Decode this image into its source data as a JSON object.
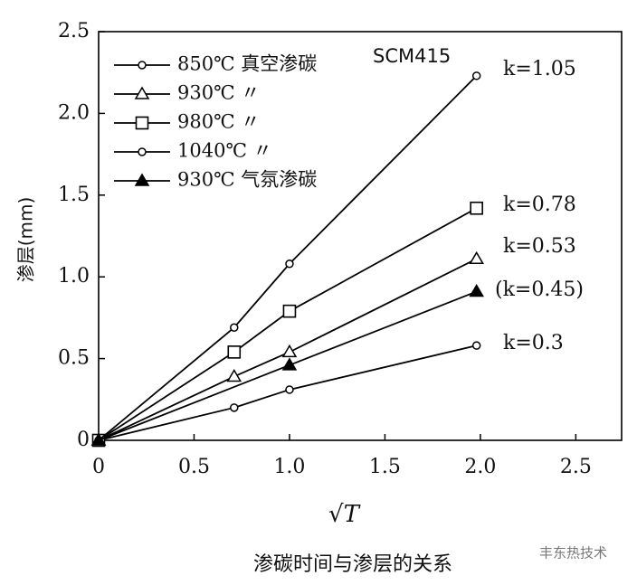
{
  "chart_data": {
    "type": "line",
    "x_label": "√T",
    "y_label": "渗层(mm)",
    "caption": "渗碳时间与渗层的关系",
    "watermark": "丰东热技术",
    "annotations": [
      "SCM415",
      "k=1.05",
      "k=0.78",
      "k=0.53",
      "(k=0.45)",
      "k=0.3"
    ],
    "series": [
      {
        "name": "850℃ 真空渗碳",
        "color": "#000000",
        "marker": "circle-small",
        "x": [
          0,
          0.71,
          1.0,
          1.98
        ],
        "values": [
          0,
          0.2,
          0.31,
          0.58
        ]
      },
      {
        "name": "930℃ 〃",
        "color": "#000000",
        "marker": "triangle",
        "x": [
          0,
          0.71,
          1.0,
          1.98
        ],
        "values": [
          0,
          0.39,
          0.54,
          1.11
        ]
      },
      {
        "name": "980℃ 〃",
        "color": "#000000",
        "marker": "square",
        "x": [
          0,
          0.71,
          1.0,
          1.98
        ],
        "values": [
          0,
          0.54,
          0.79,
          1.42
        ]
      },
      {
        "name": "1040℃ 〃",
        "color": "#000000",
        "marker": "circle-small",
        "x": [
          0,
          0.71,
          1.0,
          1.98
        ],
        "values": [
          0,
          0.69,
          1.08,
          2.23
        ]
      },
      {
        "name": "930℃ 气氛渗碳",
        "color": "#000000",
        "marker": "triangle-filled",
        "x": [
          0,
          1.0,
          1.98
        ],
        "values": [
          0,
          0.46,
          0.91
        ]
      }
    ],
    "xlim": [
      0,
      2.74
    ],
    "ylim": [
      0,
      2.5
    ],
    "xticks": [
      0,
      0.5,
      {
        "value": 1,
        "label": "1.0"
      },
      1.5,
      {
        "value": 2,
        "label": "2.0"
      },
      2.5
    ],
    "yticks": [
      0,
      0.5,
      {
        "value": 1,
        "label": "1.0"
      },
      1.5,
      {
        "value": 2,
        "label": "2.0"
      },
      2.5
    ],
    "grid": false
  }
}
